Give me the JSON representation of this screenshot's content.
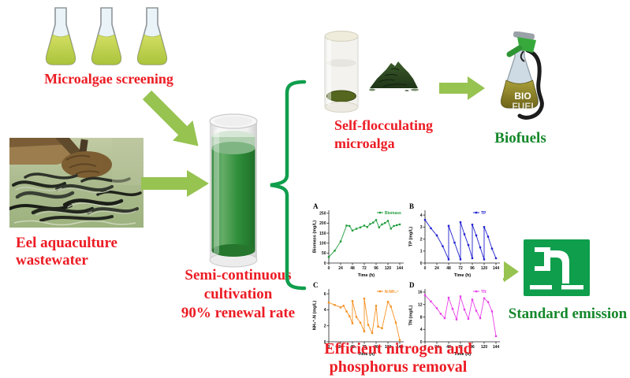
{
  "labels": {
    "microalgae_screening": "Microalgae screening",
    "eel_line1": "Eel aquaculture",
    "eel_line2": "wastewater",
    "semi_line1": "Semi-continuous",
    "semi_line2": "cultivation",
    "semi_line3": "90% renewal rate",
    "floc_line1": "Self-flocculating",
    "floc_line2": "microalga",
    "biofuels": "Biofuels",
    "efficient_line1": "Efficient nitrogen and",
    "efficient_line2": "phosphorus removal",
    "standard_emission": "Standard emission",
    "biofuel_text1": "BIO",
    "biofuel_text2": "FUEL"
  },
  "colors": {
    "red_text": "#ec1c24",
    "green_text": "#15882b",
    "arrow_green": "#97c351",
    "brace_green": "#0f9e4c",
    "emission_square": "#0f9e4c",
    "culture_green": "#2f8f3a",
    "flask_liquid": "#bcd04a"
  },
  "icons": [
    {
      "name": "erlenmeyer-flasks",
      "meaning": "microalgae screening cultures"
    },
    {
      "name": "eel-photo",
      "meaning": "eel aquaculture wastewater source"
    },
    {
      "name": "culture-tube",
      "meaning": "semi-continuous cultivation column"
    },
    {
      "name": "settling-tube",
      "meaning": "self-flocculated algae settled in tube"
    },
    {
      "name": "algae-powder",
      "meaning": "harvested microalgae biomass"
    },
    {
      "name": "biofuel-flask-pump",
      "meaning": "biofuel production"
    },
    {
      "name": "faucet-discharge",
      "meaning": "standard emission discharge"
    }
  ],
  "chart_data": [
    {
      "type": "line",
      "panel": "A",
      "legend": "Biomass",
      "color": "#1f9c3c",
      "xlabel": "Time (h)",
      "ylabel": "Biomass (mg/L)",
      "xlim": [
        0,
        152
      ],
      "ylim": [
        0,
        265
      ],
      "xticks": [
        0,
        24,
        48,
        72,
        96,
        120,
        144
      ],
      "yticks": [
        0,
        50,
        100,
        150,
        200,
        250
      ],
      "points": [
        [
          0,
          30
        ],
        [
          12,
          62
        ],
        [
          24,
          108
        ],
        [
          36,
          188
        ],
        [
          42,
          186
        ],
        [
          48,
          163
        ],
        [
          56,
          172
        ],
        [
          64,
          179
        ],
        [
          72,
          188
        ],
        [
          78,
          181
        ],
        [
          84,
          196
        ],
        [
          90,
          203
        ],
        [
          96,
          216
        ],
        [
          102,
          179
        ],
        [
          108,
          194
        ],
        [
          114,
          201
        ],
        [
          120,
          212
        ],
        [
          126,
          173
        ],
        [
          132,
          186
        ],
        [
          138,
          190
        ],
        [
          144,
          194
        ]
      ]
    },
    {
      "type": "line",
      "panel": "B",
      "legend": "TP",
      "color": "#2020cf",
      "xlabel": "Time (h)",
      "ylabel": "TP (mg/L)",
      "xlim": [
        0,
        152
      ],
      "ylim": [
        0,
        4.4
      ],
      "xticks": [
        0,
        24,
        48,
        72,
        96,
        120,
        144
      ],
      "yticks": [
        0,
        1,
        2,
        3,
        4
      ],
      "points": [
        [
          0,
          3.6
        ],
        [
          12,
          2.9
        ],
        [
          24,
          2.3
        ],
        [
          36,
          1.4
        ],
        [
          48,
          0.3
        ],
        [
          48,
          3.1
        ],
        [
          60,
          1.7
        ],
        [
          72,
          0.3
        ],
        [
          72,
          3.4
        ],
        [
          80,
          2.4
        ],
        [
          88,
          1.5
        ],
        [
          96,
          0.4
        ],
        [
          96,
          3.2
        ],
        [
          104,
          2.3
        ],
        [
          112,
          1.3
        ],
        [
          120,
          0.3
        ],
        [
          120,
          3.0
        ],
        [
          128,
          2.2
        ],
        [
          136,
          1.2
        ],
        [
          144,
          0.4
        ]
      ]
    },
    {
      "type": "line",
      "panel": "C",
      "legend": "N-NH₄⁺",
      "color": "#f59122",
      "xlabel": "Time (h)",
      "ylabel": "NH₄⁺-N (mg/L)",
      "xlim": [
        0,
        152
      ],
      "ylim": [
        0,
        6.6
      ],
      "xticks": [
        0,
        24,
        48,
        72,
        96,
        120,
        144
      ],
      "yticks": [
        0,
        2,
        4,
        6
      ],
      "points": [
        [
          0,
          4.9
        ],
        [
          12,
          4.6
        ],
        [
          24,
          4.3
        ],
        [
          30,
          4.5
        ],
        [
          36,
          3.8
        ],
        [
          42,
          3.2
        ],
        [
          48,
          2.3
        ],
        [
          48,
          5.1
        ],
        [
          56,
          3.1
        ],
        [
          64,
          2.4
        ],
        [
          72,
          1.3
        ],
        [
          72,
          5.4
        ],
        [
          80,
          2.1
        ],
        [
          88,
          1.1
        ],
        [
          96,
          4.5
        ],
        [
          100,
          1.9
        ],
        [
          108,
          1.7
        ],
        [
          120,
          5.0
        ],
        [
          126,
          4.4
        ],
        [
          136,
          2.4
        ],
        [
          144,
          0.2
        ]
      ]
    },
    {
      "type": "line",
      "panel": "D",
      "legend": "TN",
      "color": "#e840e8",
      "xlabel": "Time (h)",
      "ylabel": "TN (mg/L)",
      "xlim": [
        0,
        152
      ],
      "ylim": [
        0,
        17
      ],
      "xticks": [
        0,
        24,
        48,
        72,
        96,
        120,
        144
      ],
      "yticks": [
        0,
        4,
        8,
        12,
        16
      ],
      "points": [
        [
          0,
          15
        ],
        [
          12,
          13
        ],
        [
          24,
          10.8
        ],
        [
          32,
          9
        ],
        [
          40,
          7.6
        ],
        [
          48,
          14.2
        ],
        [
          56,
          10.6
        ],
        [
          64,
          7.2
        ],
        [
          72,
          14.6
        ],
        [
          80,
          10.4
        ],
        [
          88,
          7.4
        ],
        [
          96,
          13.6
        ],
        [
          104,
          10
        ],
        [
          112,
          7.6
        ],
        [
          120,
          14
        ],
        [
          128,
          12.8
        ],
        [
          136,
          9.8
        ],
        [
          144,
          1.8
        ]
      ]
    }
  ]
}
